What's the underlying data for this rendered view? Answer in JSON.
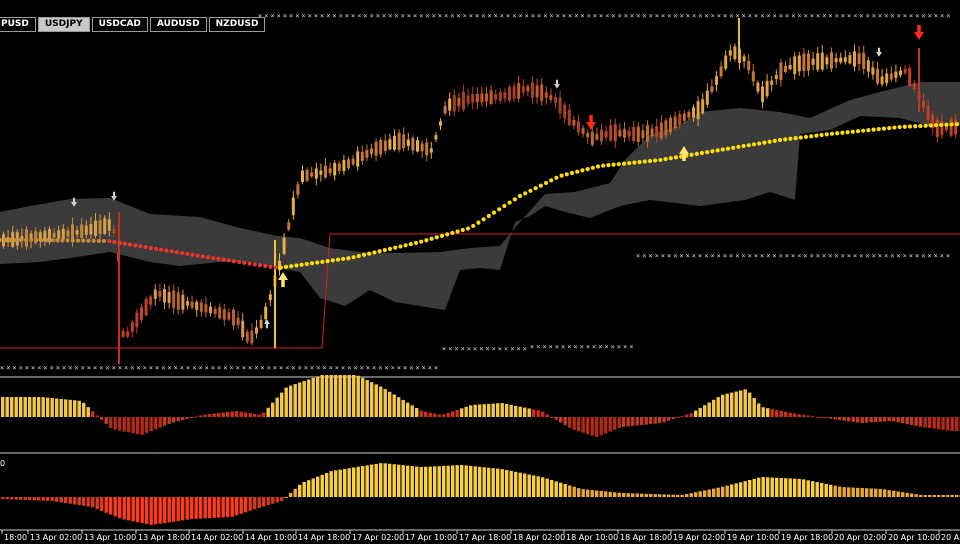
{
  "symbol_tabs": [
    {
      "label": "GBPUSD",
      "visible_text": "PUSD",
      "active": false
    },
    {
      "label": "USDJPY",
      "active": true
    },
    {
      "label": "USDCAD",
      "active": false
    },
    {
      "label": "AUDUSD",
      "active": false
    },
    {
      "label": "NZDUSD",
      "active": false
    }
  ],
  "time_axis": {
    "labels": [
      "18:00",
      "13 Apr 02:00",
      "13 Apr 10:00",
      "13 Apr 18:00",
      "14 Apr 02:00",
      "14 Apr 10:00",
      "14 Apr 18:00",
      "17 Apr 02:00",
      "17 Apr 10:00",
      "17 Apr 18:00",
      "18 Apr 02:00",
      "18 Apr 10:00",
      "18 Apr 18:00",
      "19 Apr 02:00",
      "19 Apr 10:00",
      "19 Apr 18:00",
      "20 Apr 02:00",
      "20 Apr 10:00",
      "20 Ap"
    ]
  },
  "indicator2_level_label": "0",
  "colors": {
    "background": "#000000",
    "cloud": "#3c3c3c",
    "moving_average_up": "#ffe000",
    "moving_average_down": "#e8382c",
    "signal_down_arrow": "#ff2a1a",
    "signal_up_arrow": "#ffe27a",
    "channel_line": "#d42020",
    "histogram_bull": "#f2c84a",
    "histogram_bear": "#c8301e",
    "separator": "#d0d0d0"
  }
}
